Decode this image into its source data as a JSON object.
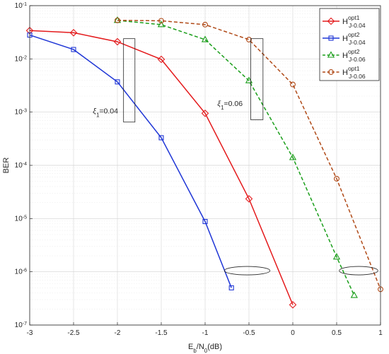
{
  "chart_data": {
    "type": "line",
    "title": "",
    "xlabel": {
      "main": "E",
      "sub1": "b",
      "mid": "/N",
      "sub2": "0",
      "tail": "(dB)"
    },
    "ylabel": "BER",
    "xlim": [
      -3,
      1
    ],
    "ylim": [
      1e-07,
      0.1
    ],
    "y_scale": "log",
    "grid": true,
    "legend_position": "top-right",
    "x_ticks": [
      "-3",
      "-2.5",
      "-2",
      "-1.5",
      "-1",
      "-0.5",
      "0",
      "0.5",
      "1"
    ],
    "y_ticks": [
      {
        "base": "10",
        "exp": "-7"
      },
      {
        "base": "10",
        "exp": "-6"
      },
      {
        "base": "10",
        "exp": "-5"
      },
      {
        "base": "10",
        "exp": "-4"
      },
      {
        "base": "10",
        "exp": "-3"
      },
      {
        "base": "10",
        "exp": "-2"
      },
      {
        "base": "10",
        "exp": "-1"
      }
    ],
    "series": [
      {
        "name": {
          "main": "H",
          "sup": "opt1",
          "sub": "J-0.04"
        },
        "color": "#e41a1c",
        "marker": "diamond",
        "dashed": false,
        "x": [
          -3,
          -2.5,
          -2,
          -1.5,
          -1,
          -0.5,
          0
        ],
        "y": [
          0.034,
          0.031,
          0.021,
          0.0098,
          0.00095,
          2.35e-05,
          2.4e-07
        ]
      },
      {
        "name": {
          "main": "H",
          "sup": "opt2",
          "sub": "J-0.04"
        },
        "color": "#1f36d6",
        "marker": "square",
        "dashed": false,
        "x": [
          -3,
          -2.5,
          -2,
          -1.5,
          -1,
          -0.7
        ],
        "y": [
          0.028,
          0.015,
          0.0037,
          0.00033,
          8.8e-06,
          5e-07
        ]
      },
      {
        "name": {
          "main": "H",
          "sup": "opt2",
          "sub": "J-0.06"
        },
        "color": "#1a9e1a",
        "marker": "triangle",
        "dashed": true,
        "x": [
          -2,
          -1.5,
          -1,
          -0.5,
          0,
          0.5,
          0.7
        ],
        "y": [
          0.053,
          0.044,
          0.023,
          0.0039,
          0.00014,
          1.9e-06,
          3.6e-07
        ]
      },
      {
        "name": {
          "main": "H",
          "sup": "opt1",
          "sub": "J-0.06"
        },
        "color": "#b04a18",
        "marker": "circle",
        "dashed": true,
        "x": [
          -2,
          -1.5,
          -1,
          -0.5,
          0,
          0.5,
          1
        ],
        "y": [
          0.053,
          0.052,
          0.044,
          0.023,
          0.0033,
          5.6e-05,
          4.7e-07
        ]
      }
    ],
    "annotations": [
      {
        "label": {
          "main": "ξ",
          "sub": "1",
          "value": "=0.04"
        },
        "at": [
          -2.28,
          0.00095
        ]
      },
      {
        "label": {
          "main": "ξ",
          "sub": "1",
          "value": "=0.06"
        },
        "at": [
          -0.86,
          0.0013
        ]
      }
    ],
    "rect_markers": [
      {
        "x": [
          -1.93,
          -1.8
        ],
        "y": [
          0.00065,
          0.024
        ]
      },
      {
        "x": [
          -0.48,
          -0.34
        ],
        "y": [
          0.00072,
          0.024
        ]
      }
    ],
    "ellipse_markers": [
      {
        "cx": -0.52,
        "cy": 1.05e-06,
        "rx": 0.26
      },
      {
        "cx": 0.75,
        "cy": 1.05e-06,
        "rx": 0.22
      }
    ]
  }
}
